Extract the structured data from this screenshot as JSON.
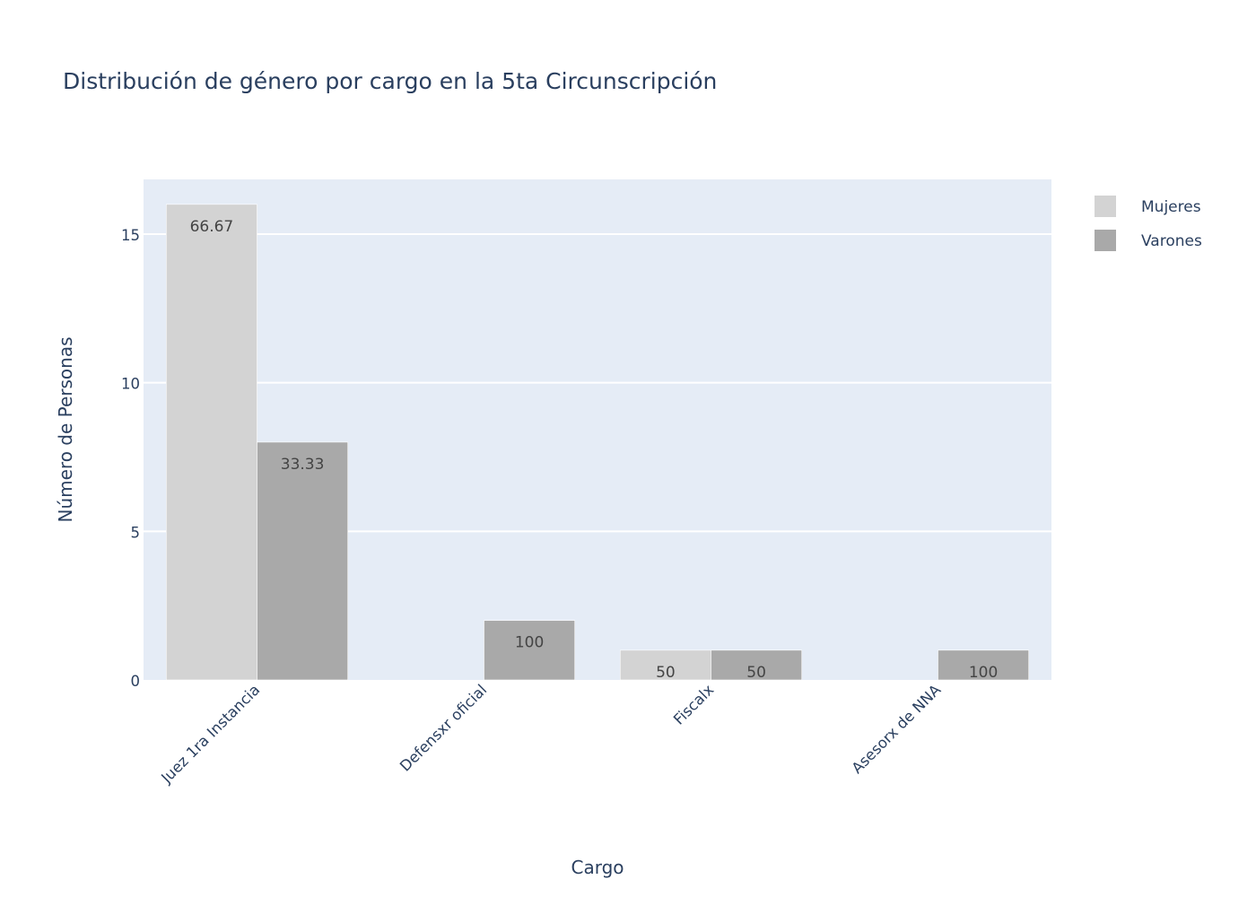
{
  "chart_data": {
    "type": "bar",
    "title": "Distribución de género por cargo en la 5ta Circunscripción",
    "xlabel": "Cargo",
    "ylabel": "Número de Personas",
    "categories": [
      "Juez 1ra Instancia",
      "Defensxr oficial",
      "Fiscalx",
      "Asesorx de NNA"
    ],
    "series": [
      {
        "name": "Mujeres",
        "color": "#d3d3d3",
        "values": [
          16,
          0,
          1,
          0
        ],
        "text": [
          "66.67",
          "",
          "50",
          ""
        ]
      },
      {
        "name": "Varones",
        "color": "#a9a9a9",
        "values": [
          8,
          2,
          1,
          1
        ],
        "text": [
          "33.33",
          "100",
          "50",
          "100"
        ]
      }
    ],
    "ylim": [
      0,
      16.84
    ],
    "yticks": [
      0,
      5,
      10,
      15
    ],
    "grid": true,
    "legend_position": "top-right",
    "plot_background": "#e5ecf6",
    "gridline_color": "#ffffff",
    "text_color": "#2a3f5f"
  }
}
